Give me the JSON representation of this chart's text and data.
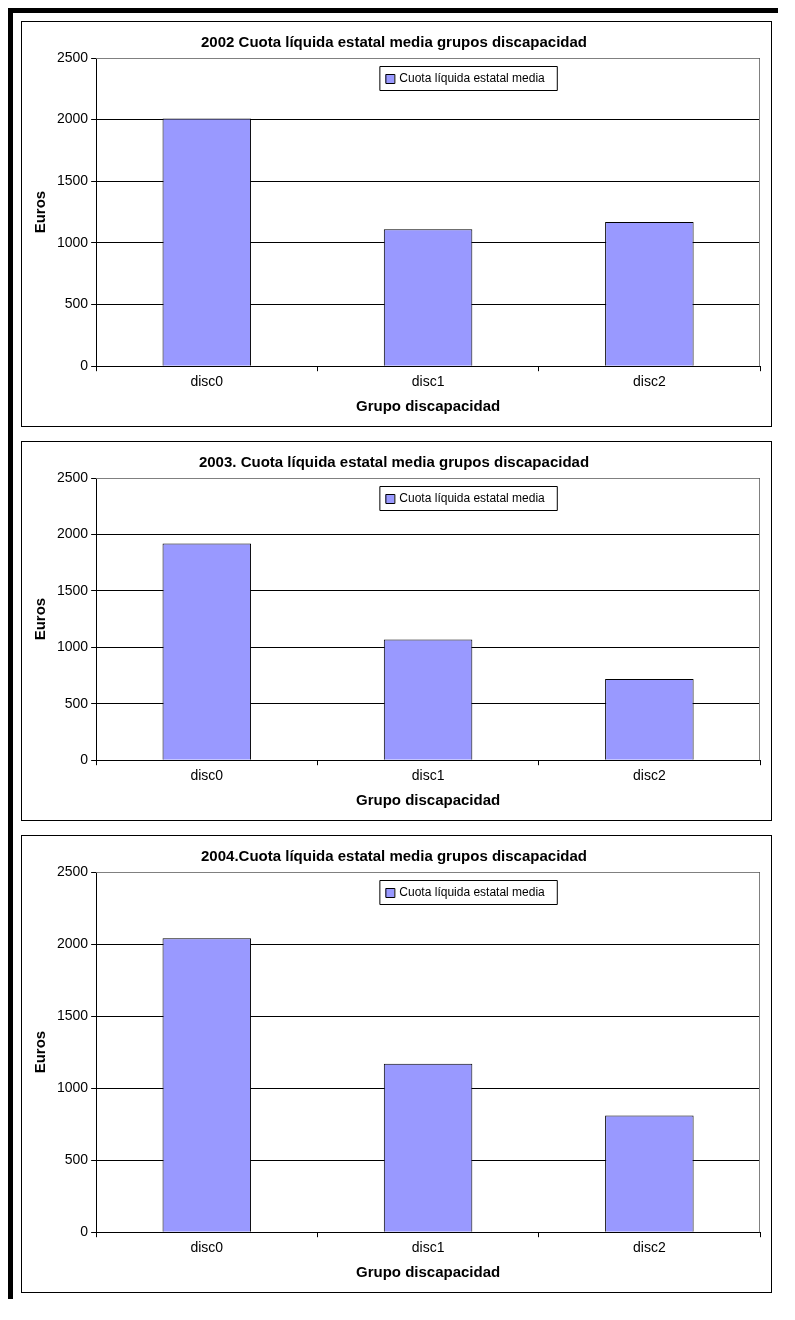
{
  "chart_data": [
    {
      "type": "bar",
      "title": "2002 Cuota líquida estatal media grupos discapacidad",
      "xlabel": "Grupo discapacidad",
      "ylabel": "Euros",
      "categories": [
        "disc0",
        "disc1",
        "disc2"
      ],
      "series": [
        {
          "name": "Cuota líquida estatal media",
          "color": "#9999ff",
          "values": [
            2010,
            1110,
            1170
          ]
        }
      ],
      "ylim": [
        0,
        2500
      ],
      "yticks": [
        0,
        500,
        1000,
        1500,
        2000,
        2500
      ],
      "grid": "y",
      "legend": "top"
    },
    {
      "type": "bar",
      "title": "2003. Cuota líquida estatal media grupos discapacidad",
      "xlabel": "Grupo discapacidad",
      "ylabel": "Euros",
      "categories": [
        "disc0",
        "disc1",
        "disc2"
      ],
      "series": [
        {
          "name": "Cuota líquida estatal media",
          "color": "#9999ff",
          "values": [
            1920,
            1070,
            720
          ]
        }
      ],
      "ylim": [
        0,
        2500
      ],
      "yticks": [
        0,
        500,
        1000,
        1500,
        2000,
        2500
      ],
      "grid": "y",
      "legend": "top"
    },
    {
      "type": "bar",
      "title": "2004.Cuota líquida estatal media grupos discapacidad",
      "xlabel": "Grupo discapacidad",
      "ylabel": "Euros",
      "categories": [
        "disc0",
        "disc1",
        "disc2"
      ],
      "series": [
        {
          "name": "Cuota líquida estatal media",
          "color": "#9999ff",
          "values": [
            2040,
            1170,
            810
          ]
        }
      ],
      "ylim": [
        0,
        2500
      ],
      "yticks": [
        0,
        500,
        1000,
        1500,
        2000,
        2500
      ],
      "grid": "y",
      "legend": "top"
    }
  ]
}
